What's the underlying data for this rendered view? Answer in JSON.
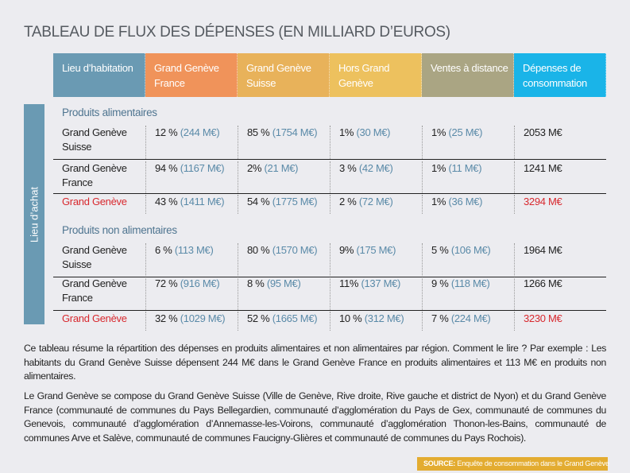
{
  "title": "TABLEAU DE FLUX DES DÉPENSES (EN MILLIARD D’EUROS)",
  "colors": {
    "header_residence": "#6a9ab3",
    "gg_france": "#f0935a",
    "gg_suisse": "#e8b25a",
    "hors_gg": "#edc15e",
    "ventes_distance": "#aaa583",
    "depenses": "#1ab4e8",
    "total_red": "#d8282e",
    "value_blue": "#5a8aa8",
    "source_bg": "#e3ac31"
  },
  "header": [
    "Lieu d’habitation",
    "Grand Genève France",
    "Grand Genève Suisse",
    "Hors Grand Genève",
    "Ventes à distance",
    "Dépenses de consommation"
  ],
  "side_label": "Lieu d’achat",
  "sections": [
    {
      "title": "Produits alimentaires",
      "rows": [
        {
          "label": "Grand Genève Suisse",
          "cells": [
            {
              "pct": "12 %",
              "val": "(244 M€)"
            },
            {
              "pct": "85 %",
              "val": "(1754 M€)"
            },
            {
              "pct": "1%",
              "val": "(30 M€)"
            },
            {
              "pct": "1%",
              "val": "(25 M€)"
            }
          ],
          "total": "2053 M€"
        },
        {
          "label": "Grand Genève France",
          "cells": [
            {
              "pct": "94 %",
              "val": "(1167 M€)"
            },
            {
              "pct": "2%",
              "val": "(21 M€)"
            },
            {
              "pct": "3 %",
              "val": "(42 M€)"
            },
            {
              "pct": "1%",
              "val": "(11 M€)"
            }
          ],
          "total": "1241 M€"
        },
        {
          "label": "Grand Genève",
          "cells": [
            {
              "pct": "43 %",
              "val": "(1411 M€)"
            },
            {
              "pct": "54 %",
              "val": "(1775 M€)"
            },
            {
              "pct": "2 %",
              "val": "(72 M€)"
            },
            {
              "pct": "1%",
              "val": "(36 M€)"
            }
          ],
          "total": "3294 M€"
        }
      ]
    },
    {
      "title": "Produits non alimentaires",
      "rows": [
        {
          "label": "Grand Genève Suisse",
          "cells": [
            {
              "pct": "6 %",
              "val": "(113 M€)"
            },
            {
              "pct": "80 %",
              "val": "(1570 M€)"
            },
            {
              "pct": "9%",
              "val": "(175 M€)"
            },
            {
              "pct": "5 %",
              "val": "(106 M€)"
            }
          ],
          "total": "1964 M€"
        },
        {
          "label": "Grand Genève France",
          "cells": [
            {
              "pct": "72 %",
              "val": "(916 M€)"
            },
            {
              "pct": "8 %",
              "val": "(95 M€)"
            },
            {
              "pct": "11%",
              "val": "(137 M€)"
            },
            {
              "pct": "9 %",
              "val": "(118 M€)"
            }
          ],
          "total": "1266 M€"
        },
        {
          "label": "Grand Genève",
          "cells": [
            {
              "pct": "32 %",
              "val": "(1029 M€)"
            },
            {
              "pct": "52 %",
              "val": "(1665 M€)"
            },
            {
              "pct": "10 %",
              "val": "(312 M€)"
            },
            {
              "pct": "7 %",
              "val": "(224 M€)"
            }
          ],
          "total": "3230 M€"
        }
      ]
    }
  ],
  "paragraphs": [
    "Ce tableau résume la répartition des dépenses en produits alimentaires et non alimentaires par région. Comment le lire ? Par exemple : Les habitants du Grand Genève Suisse dépensent 244 M€ dans le Grand Genève France en produits alimentaires et 113 M€ en produits non alimentaires.",
    "Le Grand Genève se compose du Grand Genève Suisse (Ville de Genève, Rive droite, Rive gauche et district de Nyon) et du Grand Genève France (communauté de communes du Pays Bellegardien, communauté d’agglomération du Pays de Gex, communauté de communes du Genevois, communauté d’agglomération d’Annemasse-les-Voirons, communauté d’agglomération Thonon-les-Bains, communauté de communes Arve et Salève, communauté de communes Faucigny-Glières et communauté de communes du Pays Rochois)."
  ],
  "source": {
    "label": "SOURCE:",
    "text": "Enquête de consommation dans le Grand Genève"
  }
}
